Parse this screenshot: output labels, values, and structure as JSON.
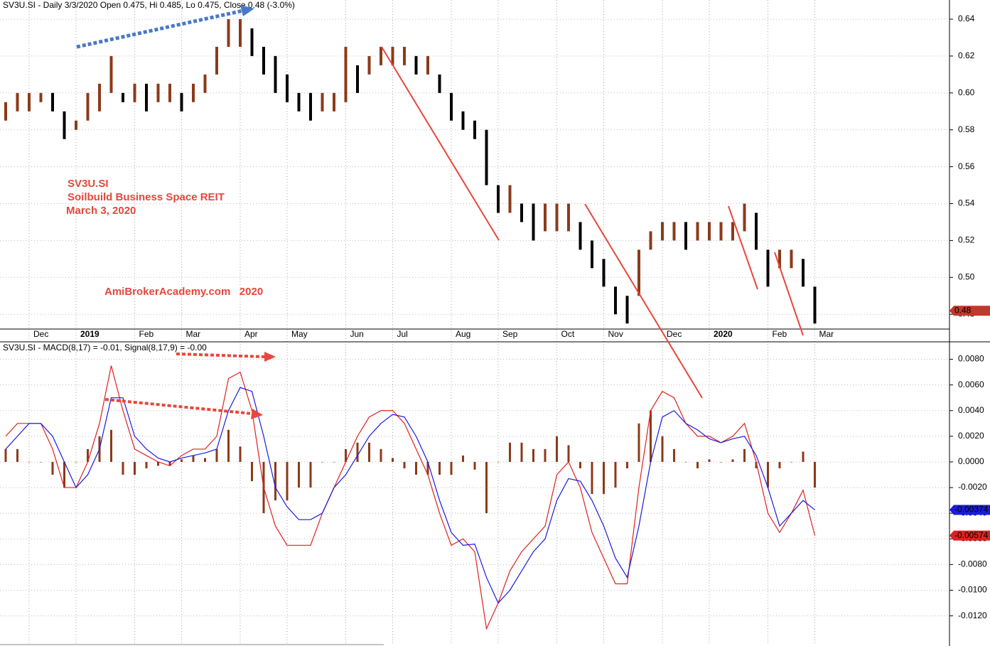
{
  "chart_data": [
    {
      "type": "price-bar",
      "title": "SV3U.SI - Daily 3/3/2020 Open 0.475, Hi 0.485, Lo 0.475, Close 0.48 (-3.0%)",
      "annotations": [
        "SV3U.SI",
        "Soilbuild Business Space REIT",
        "March 3, 2020",
        "AmiBrokerAcademy.com   2020"
      ],
      "categories": [
        null,
        null,
        "Dec",
        null,
        null,
        null,
        "2019",
        null,
        null,
        null,
        null,
        "Feb",
        null,
        null,
        null,
        "Mar",
        null,
        null,
        null,
        null,
        "Apr",
        null,
        null,
        null,
        "May",
        null,
        null,
        null,
        null,
        "Jun",
        null,
        null,
        null,
        "Jul",
        null,
        null,
        null,
        null,
        "Aug",
        null,
        null,
        null,
        "Sep",
        null,
        null,
        null,
        null,
        "Oct",
        null,
        null,
        null,
        "Nov",
        null,
        null,
        null,
        null,
        "Dec",
        null,
        null,
        null,
        "2020",
        null,
        null,
        null,
        null,
        "Feb",
        null,
        null,
        null,
        "Mar"
      ],
      "high": [
        0.595,
        0.6,
        0.6,
        0.6,
        0.6,
        0.59,
        0.585,
        0.6,
        0.605,
        0.62,
        0.6,
        0.605,
        0.605,
        0.605,
        0.605,
        0.6,
        0.605,
        0.61,
        0.625,
        0.64,
        0.64,
        0.635,
        0.625,
        0.62,
        0.61,
        0.6,
        0.6,
        0.6,
        0.6,
        0.625,
        0.615,
        0.62,
        0.625,
        0.625,
        0.625,
        0.62,
        0.62,
        0.61,
        0.6,
        0.59,
        0.585,
        0.58,
        0.55,
        0.55,
        0.54,
        0.54,
        0.54,
        0.54,
        0.54,
        0.53,
        0.52,
        0.51,
        0.495,
        0.49,
        0.515,
        0.525,
        0.53,
        0.53,
        0.53,
        0.53,
        0.53,
        0.53,
        0.53,
        0.54,
        0.535,
        0.515,
        0.515,
        0.515,
        0.51,
        0.495
      ],
      "low": [
        0.585,
        0.59,
        0.59,
        0.595,
        0.59,
        0.575,
        0.58,
        0.585,
        0.59,
        0.6,
        0.595,
        0.595,
        0.59,
        0.595,
        0.595,
        0.59,
        0.595,
        0.6,
        0.61,
        0.625,
        0.625,
        0.62,
        0.61,
        0.6,
        0.595,
        0.59,
        0.585,
        0.59,
        0.59,
        0.595,
        0.6,
        0.61,
        0.615,
        0.615,
        0.615,
        0.61,
        0.61,
        0.6,
        0.585,
        0.58,
        0.575,
        0.55,
        0.535,
        0.535,
        0.53,
        0.52,
        0.525,
        0.525,
        0.525,
        0.515,
        0.505,
        0.495,
        0.48,
        0.475,
        0.49,
        0.515,
        0.52,
        0.52,
        0.515,
        0.52,
        0.52,
        0.52,
        0.52,
        0.525,
        0.515,
        0.495,
        0.505,
        0.505,
        0.495,
        0.475
      ],
      "up_color": "#8b3a1a",
      "down_color": "#000000",
      "last_label": "0.48",
      "last_label_color": "#c0392b",
      "ylim": [
        0.472,
        0.65
      ],
      "yticks": [
        0.48,
        {
          "value": 0.5,
          "label": "0.50"
        },
        0.52,
        0.54,
        0.56,
        0.58,
        {
          "value": 0.6,
          "label": "0.60"
        },
        0.62,
        0.64
      ],
      "grid": true
    },
    {
      "type": "macd",
      "title": "SV3U.SI - MACD(8,17) = -0.01, Signal(8,17,9) = -0.00",
      "series": [
        {
          "color": "#e02020",
          "last_label": "-0.00574",
          "values": [
            0.002,
            0.003,
            0.003,
            0.003,
            0.001,
            -0.002,
            -0.002,
            0,
            0.003,
            0.0075,
            0.004,
            0.001,
            0.0005,
            0,
            -0.0003,
            0.0005,
            0.001,
            0.001,
            0.002,
            0.0065,
            0.007,
            0.004,
            -0.002,
            -0.005,
            -0.0065,
            -0.0065,
            -0.0065,
            -0.004,
            -0.002,
            0,
            0.002,
            0.0035,
            0.004,
            0.004,
            0.003,
            0.001,
            -0.001,
            -0.004,
            -0.0065,
            -0.006,
            -0.007,
            -0.013,
            -0.011,
            -0.0085,
            -0.007,
            -0.006,
            -0.005,
            -0.001,
            0,
            -0.002,
            -0.0055,
            -0.0075,
            -0.0095,
            -0.0095,
            -0.002,
            0.004,
            0.0055,
            0.005,
            0.003,
            0.002,
            0.002,
            0.0015,
            0.002,
            0.003,
            0,
            -0.004,
            -0.0055,
            -0.004,
            -0.0022,
            -0.00574
          ]
        },
        {
          "color": "#1a1ae0",
          "last_label": "-0.00374",
          "values": [
            0.001,
            0.002,
            0.003,
            0.003,
            0.002,
            0,
            -0.002,
            -0.001,
            0.001,
            0.005,
            0.005,
            0.002,
            0.001,
            0.0003,
            0,
            0.0003,
            0.0005,
            0.0007,
            0.001,
            0.004,
            0.0058,
            0.0055,
            0.002,
            -0.002,
            -0.0035,
            -0.0045,
            -0.0045,
            -0.004,
            -0.002,
            -0.001,
            0.0005,
            0.002,
            0.003,
            0.0037,
            0.0035,
            0.002,
            0,
            -0.003,
            -0.0055,
            -0.0065,
            -0.0064,
            -0.009,
            -0.011,
            -0.01,
            -0.0085,
            -0.007,
            -0.006,
            -0.003,
            -0.0013,
            -0.0015,
            -0.003,
            -0.005,
            -0.0075,
            -0.009,
            -0.005,
            0,
            0.0035,
            0.004,
            0.003,
            0.0025,
            0.0018,
            0.0015,
            0.0018,
            0.002,
            0.0005,
            -0.002,
            -0.005,
            -0.004,
            -0.003,
            -0.00374
          ]
        }
      ],
      "histogram": {
        "color": "#8b3a1a",
        "values": [
          0.001,
          0.001,
          0,
          0,
          -0.001,
          -0.002,
          0,
          0.001,
          0.002,
          0.0025,
          -0.001,
          -0.001,
          -0.0005,
          -0.0003,
          -0.0003,
          0.0002,
          0.0005,
          0.0003,
          0.001,
          0.0025,
          0.0012,
          -0.0015,
          -0.004,
          -0.003,
          -0.003,
          -0.002,
          -0.002,
          0,
          0,
          0.001,
          0.0015,
          0.0015,
          0.001,
          0.0003,
          -0.0005,
          -0.001,
          -0.001,
          -0.001,
          -0.001,
          0.0005,
          -0.0006,
          -0.004,
          0,
          0.0015,
          0.0015,
          0.001,
          0.001,
          0.002,
          0.0013,
          -0.0005,
          -0.0025,
          -0.0025,
          -0.002,
          -0.0005,
          0.003,
          0.004,
          0.002,
          0.001,
          0,
          -0.0005,
          0.0002,
          0,
          0.0002,
          0.001,
          -0.0005,
          -0.002,
          -0.0005,
          0,
          0.0008,
          -0.002
        ]
      },
      "ylim": [
        -0.014,
        0.009
      ],
      "yticks": [
        {
          "value": -0.012,
          "label": "-0.0120"
        },
        {
          "value": -0.01,
          "label": "-0.0100"
        },
        {
          "value": -0.008,
          "label": "-0.0080"
        },
        {
          "value": -0.006,
          "label": "-0.0060"
        },
        {
          "value": -0.004,
          "label": "-0.0040"
        },
        {
          "value": -0.002,
          "label": "-0.0020"
        },
        {
          "value": 0,
          "label": "0.0000"
        },
        {
          "value": 0.002,
          "label": "0.0020"
        },
        {
          "value": 0.004,
          "label": "0.0040"
        },
        {
          "value": 0.006,
          "label": "0.0060"
        },
        {
          "value": 0.008,
          "label": "0.0080"
        }
      ],
      "grid": true
    }
  ]
}
